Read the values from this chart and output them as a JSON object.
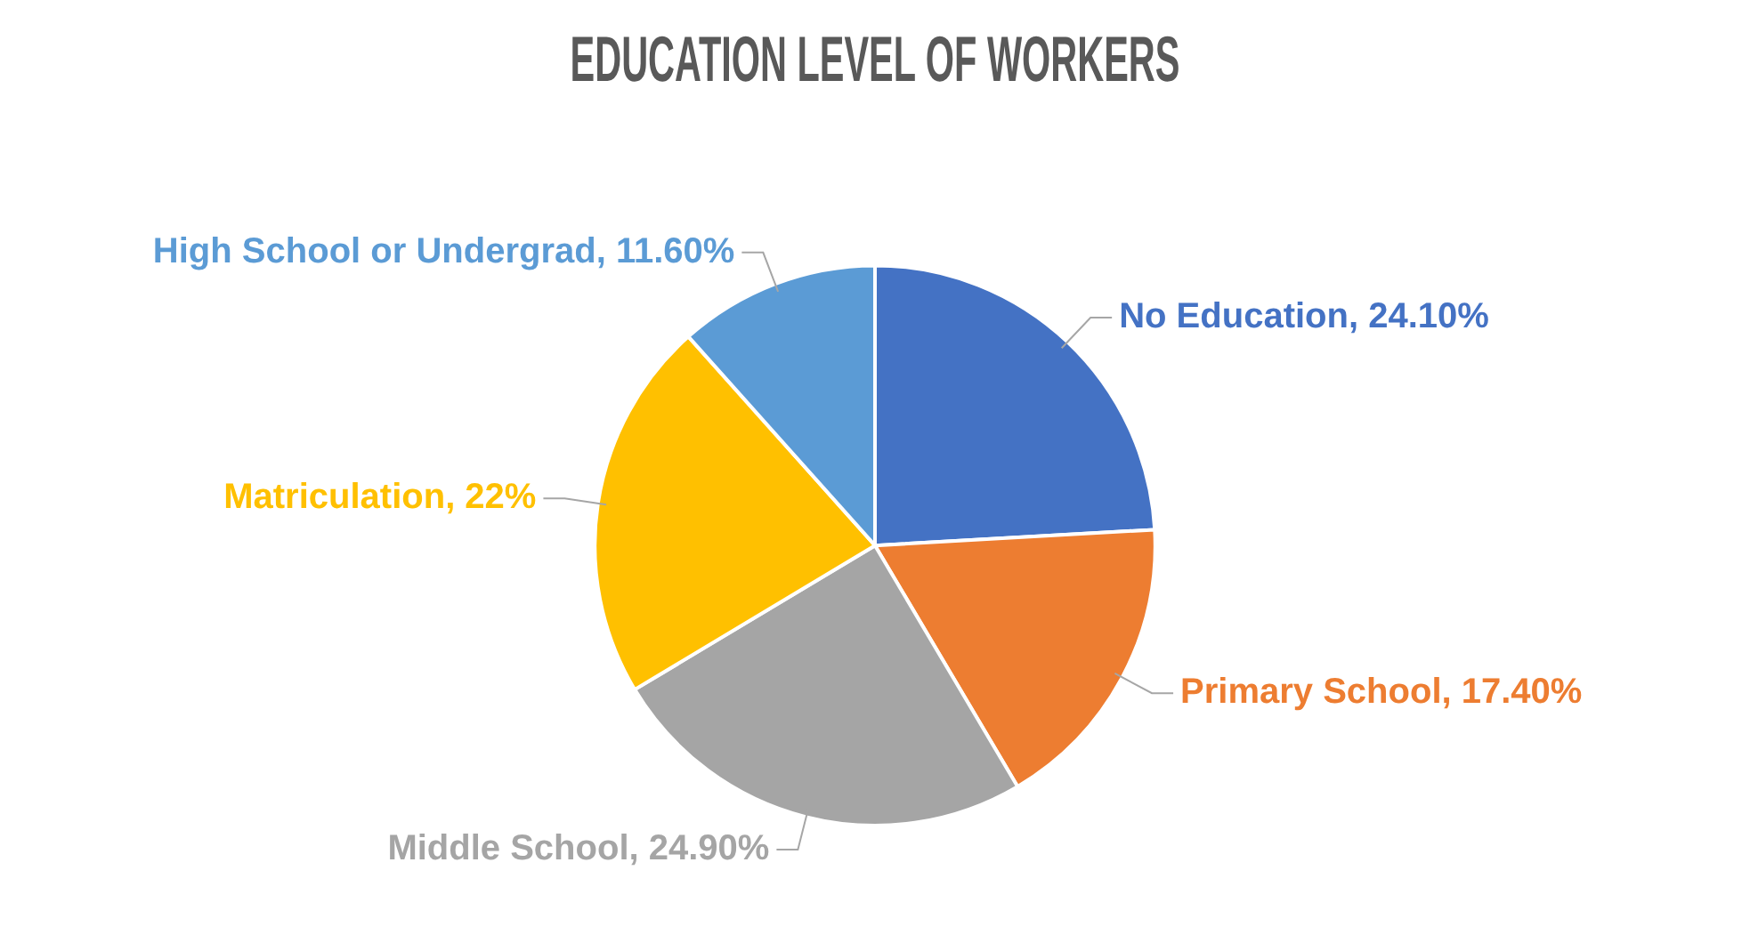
{
  "chart_data": {
    "type": "pie",
    "title": "EDUCATION LEVEL OF WORKERS",
    "categories": [
      "No Education",
      "Primary School",
      "Middle School",
      "Matriculation",
      "High School or Undergrad"
    ],
    "values": [
      24.1,
      17.4,
      24.9,
      22,
      11.6
    ],
    "colors": [
      "#4472c4",
      "#ed7d31",
      "#a5a5a5",
      "#ffc000",
      "#5b9bd5"
    ],
    "value_labels": [
      "24.10%",
      "17.40%",
      "24.90%",
      "22%",
      "11.60%"
    ],
    "legend": false
  }
}
